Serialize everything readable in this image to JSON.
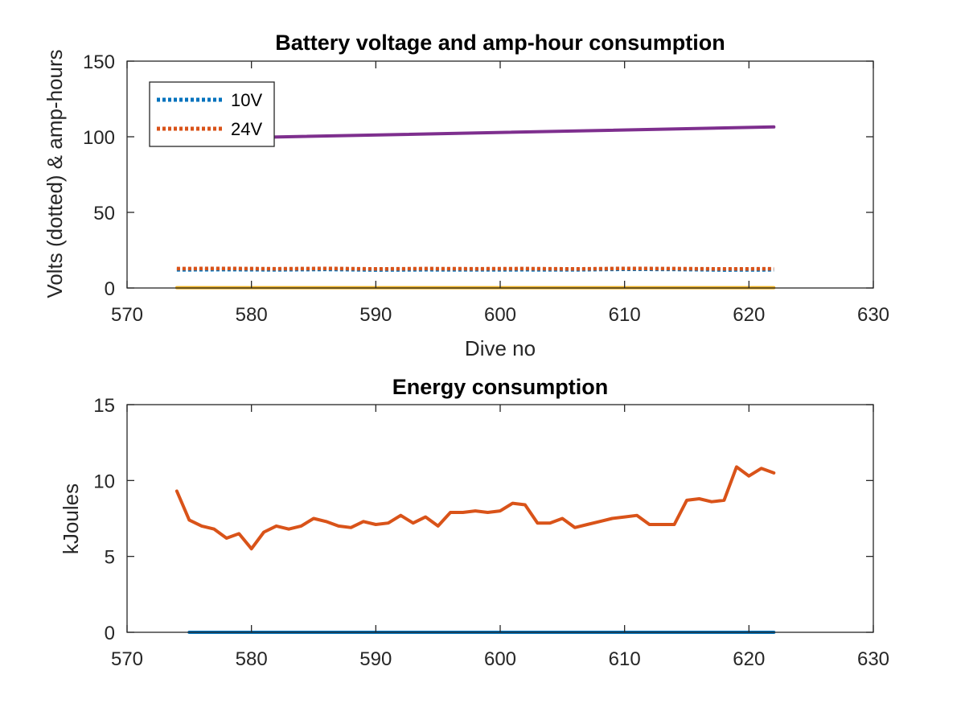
{
  "chart_data": [
    {
      "type": "line",
      "title": "Battery voltage and amp-hour consumption",
      "xlabel": "Dive no",
      "ylabel": "Volts (dotted) & amp-hours",
      "xlim": [
        570,
        630
      ],
      "ylim": [
        0,
        150
      ],
      "xticks": [
        "570",
        "580",
        "590",
        "600",
        "610",
        "620",
        "630"
      ],
      "yticks": [
        "0",
        "50",
        "100",
        "150"
      ],
      "grid": false,
      "legend_position": "top-left",
      "series": [
        {
          "name": "10V",
          "style": "dotted",
          "color": "#0072BD",
          "x": [
            574,
            578,
            582,
            586,
            590,
            594,
            598,
            602,
            606,
            610,
            614,
            618,
            622
          ],
          "y": [
            12.0,
            12.2,
            12.0,
            12.3,
            11.9,
            12.1,
            12.0,
            12.1,
            12.0,
            12.4,
            12.3,
            11.9,
            12.0
          ]
        },
        {
          "name": "24V",
          "style": "dotted",
          "color": "#D95319",
          "x": [
            574,
            578,
            582,
            586,
            590,
            594,
            598,
            602,
            606,
            610,
            614,
            618,
            622
          ],
          "y": [
            12.8,
            12.9,
            12.7,
            12.9,
            12.6,
            12.8,
            12.7,
            12.8,
            12.6,
            12.9,
            12.8,
            12.6,
            12.7
          ]
        },
        {
          "style": "solid",
          "color": "#EDB120",
          "x": [
            574,
            622
          ],
          "y": [
            0.2,
            0.2
          ]
        },
        {
          "style": "solid",
          "color": "#7E2F8E",
          "x": [
            574,
            622
          ],
          "y": [
            98.5,
            106.5
          ]
        }
      ]
    },
    {
      "type": "line",
      "title": "Energy consumption",
      "xlabel": "",
      "ylabel": "kJoules",
      "xlim": [
        570,
        630
      ],
      "ylim": [
        0,
        15
      ],
      "xticks": [
        "570",
        "580",
        "590",
        "600",
        "610",
        "620",
        "630"
      ],
      "yticks": [
        "0",
        "5",
        "10",
        "15"
      ],
      "grid": false,
      "series": [
        {
          "style": "solid",
          "color": "#0072BD",
          "x": [
            575,
            622
          ],
          "y": [
            0,
            0
          ]
        },
        {
          "style": "solid",
          "color": "#D95319",
          "x": [
            574,
            575,
            576,
            577,
            578,
            579,
            580,
            581,
            582,
            583,
            584,
            585,
            586,
            587,
            588,
            589,
            590,
            591,
            592,
            593,
            594,
            595,
            596,
            597,
            598,
            599,
            600,
            601,
            602,
            603,
            604,
            605,
            606,
            607,
            608,
            609,
            610,
            611,
            612,
            613,
            614,
            615,
            616,
            617,
            618,
            619,
            620,
            621,
            622
          ],
          "y": [
            9.3,
            7.4,
            7.0,
            6.8,
            6.2,
            6.5,
            5.5,
            6.6,
            7.0,
            6.8,
            7.0,
            7.5,
            7.3,
            7.0,
            6.9,
            7.3,
            7.1,
            7.2,
            7.7,
            7.2,
            7.6,
            7.0,
            7.9,
            7.9,
            8.0,
            7.9,
            8.0,
            8.5,
            8.4,
            7.2,
            7.2,
            7.5,
            6.9,
            7.1,
            7.3,
            7.5,
            7.6,
            7.7,
            7.1,
            7.1,
            7.1,
            8.7,
            8.8,
            8.6,
            8.7,
            10.9,
            10.3,
            10.8,
            10.5
          ]
        }
      ]
    }
  ]
}
